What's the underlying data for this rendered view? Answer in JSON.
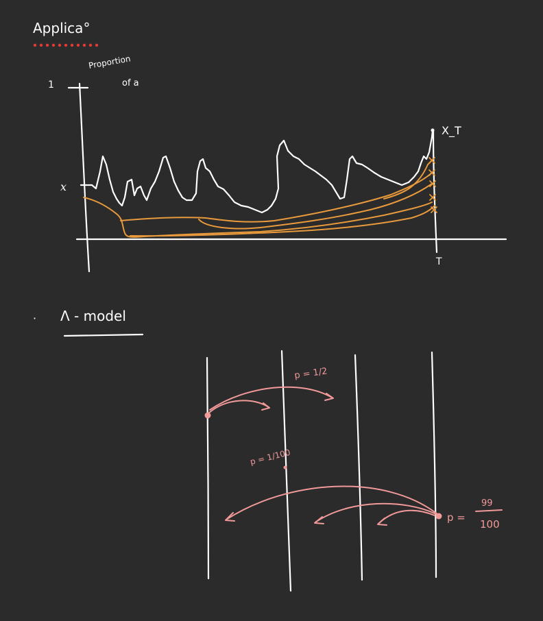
{
  "colors": {
    "background": "#2b2b2b",
    "ink": "#ffffff",
    "orange": "#e89a3c",
    "pink": "#f29a9a",
    "red_dots": "#e53935"
  },
  "heading": {
    "title": "Applica°",
    "bullet_one": "1",
    "proportion_label_line1": "Proportion",
    "proportion_label_line2": "of a"
  },
  "top_plot": {
    "x_label": "x",
    "end_label": "X_T",
    "time_label": "T"
  },
  "section_two": {
    "bullet": "·",
    "title": "Λ - model"
  },
  "bottom_diagram": {
    "label_half": "p = 1/2",
    "label_hundredth": "p = 1/100",
    "label_p": "p =",
    "label_numerator": "99",
    "label_denominator": "100"
  }
}
